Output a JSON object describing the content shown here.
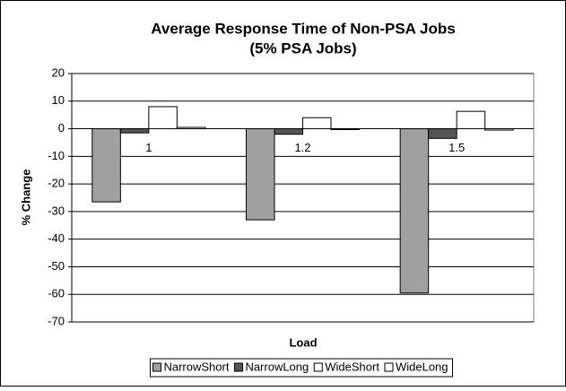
{
  "chart_data": {
    "type": "bar",
    "title": "Average Response Time of Non-PSA Jobs",
    "subtitle": "(5% PSA Jobs)",
    "x_label": "Load",
    "y_label": "% Change",
    "categories": [
      "1",
      "1.2",
      "1.5"
    ],
    "series": [
      {
        "name": "NarrowShort",
        "color": "#a0a0a0",
        "values": [
          -26.5,
          -33,
          -59.5
        ]
      },
      {
        "name": "NarrowLong",
        "color": "#555555",
        "values": [
          -1.5,
          -2,
          -3.5
        ]
      },
      {
        "name": "WideShort",
        "color": "#ffffff",
        "values": [
          8,
          4,
          6.3
        ]
      },
      {
        "name": "WideLong",
        "color": "#ffffff",
        "values": [
          0.5,
          -0.3,
          -0.5
        ]
      }
    ],
    "ylim": [
      -70,
      20
    ],
    "yticks": [
      -70,
      -60,
      -50,
      -40,
      -30,
      -20,
      -10,
      0,
      10,
      20
    ],
    "grid": true,
    "legend": "bottom"
  }
}
